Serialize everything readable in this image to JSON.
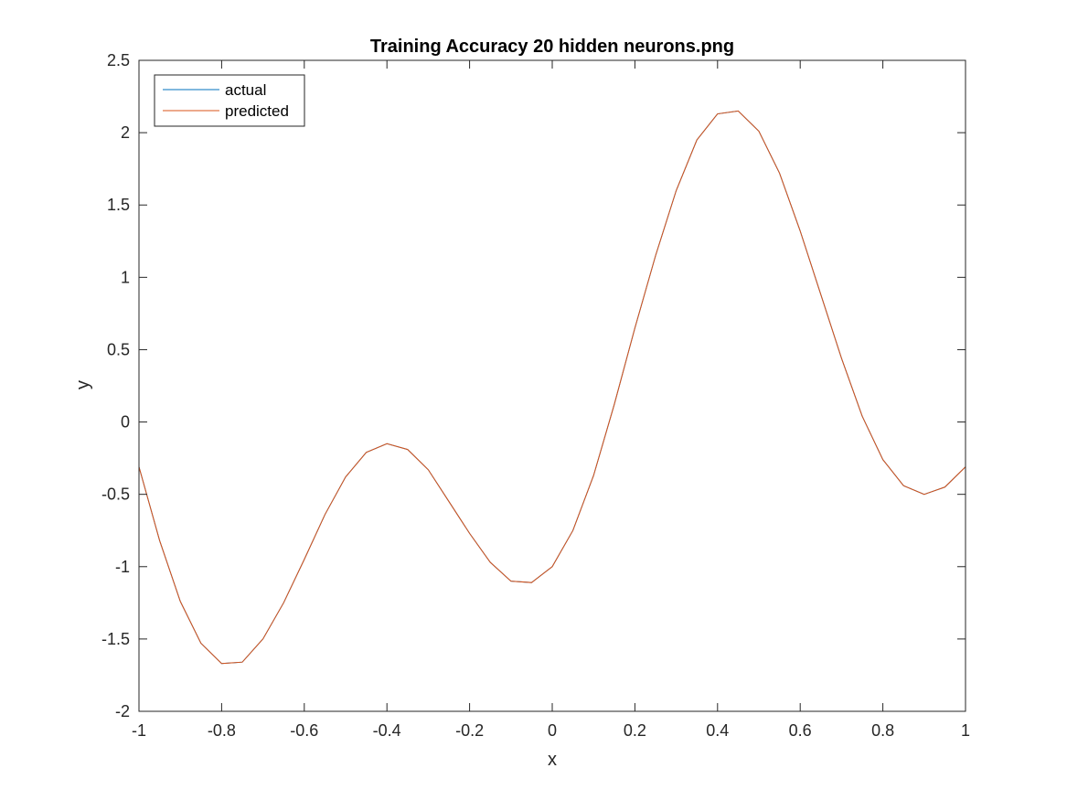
{
  "chart_data": {
    "type": "line",
    "title": "Training Accuracy 20 hidden neurons.png",
    "xlabel": "x",
    "ylabel": "y",
    "xlim": [
      -1,
      1
    ],
    "ylim": [
      -2,
      2.5
    ],
    "xticks": [
      -1,
      -0.8,
      -0.6,
      -0.4,
      -0.2,
      0,
      0.2,
      0.4,
      0.6,
      0.8,
      1
    ],
    "yticks": [
      -2,
      -1.5,
      -1,
      -0.5,
      0,
      0.5,
      1,
      1.5,
      2,
      2.5
    ],
    "xtick_labels": [
      "-1",
      "-0.8",
      "-0.6",
      "-0.4",
      "-0.2",
      "0",
      "0.2",
      "0.4",
      "0.6",
      "0.8",
      "1"
    ],
    "ytick_labels": [
      "-2",
      "-1.5",
      "-1",
      "-0.5",
      "0",
      "0.5",
      "1",
      "1.5",
      "2",
      "2.5"
    ],
    "grid": false,
    "legend_position": "top-left",
    "x": [
      -1,
      -0.95,
      -0.9,
      -0.85,
      -0.8,
      -0.75,
      -0.7,
      -0.65,
      -0.6,
      -0.55,
      -0.5,
      -0.45,
      -0.4,
      -0.35,
      -0.3,
      -0.25,
      -0.2,
      -0.15,
      -0.1,
      -0.05,
      0,
      0.05,
      0.1,
      0.15,
      0.2,
      0.25,
      0.3,
      0.35,
      0.4,
      0.45,
      0.5,
      0.55,
      0.6,
      0.65,
      0.7,
      0.75,
      0.8,
      0.85,
      0.9,
      0.95,
      1
    ],
    "series": [
      {
        "name": "actual",
        "color": "#0072BD",
        "values": [
          -0.31,
          -0.82,
          -1.24,
          -1.53,
          -1.67,
          -1.66,
          -1.5,
          -1.25,
          -0.95,
          -0.64,
          -0.38,
          -0.21,
          -0.15,
          -0.19,
          -0.33,
          -0.55,
          -0.77,
          -0.97,
          -1.1,
          -1.11,
          -1.0,
          -0.75,
          -0.37,
          0.12,
          0.65,
          1.15,
          1.6,
          1.95,
          2.13,
          2.15,
          2.01,
          1.72,
          1.32,
          0.88,
          0.44,
          0.04,
          -0.26,
          -0.44,
          -0.5,
          -0.45,
          -0.31
        ]
      },
      {
        "name": "predicted",
        "color": "#D95319",
        "values": [
          -0.31,
          -0.82,
          -1.24,
          -1.53,
          -1.67,
          -1.66,
          -1.5,
          -1.25,
          -0.95,
          -0.64,
          -0.38,
          -0.21,
          -0.15,
          -0.19,
          -0.33,
          -0.55,
          -0.77,
          -0.97,
          -1.1,
          -1.11,
          -1.0,
          -0.75,
          -0.37,
          0.12,
          0.65,
          1.15,
          1.6,
          1.95,
          2.13,
          2.15,
          2.01,
          1.72,
          1.32,
          0.88,
          0.44,
          0.04,
          -0.26,
          -0.44,
          -0.5,
          -0.45,
          -0.31
        ]
      }
    ]
  }
}
